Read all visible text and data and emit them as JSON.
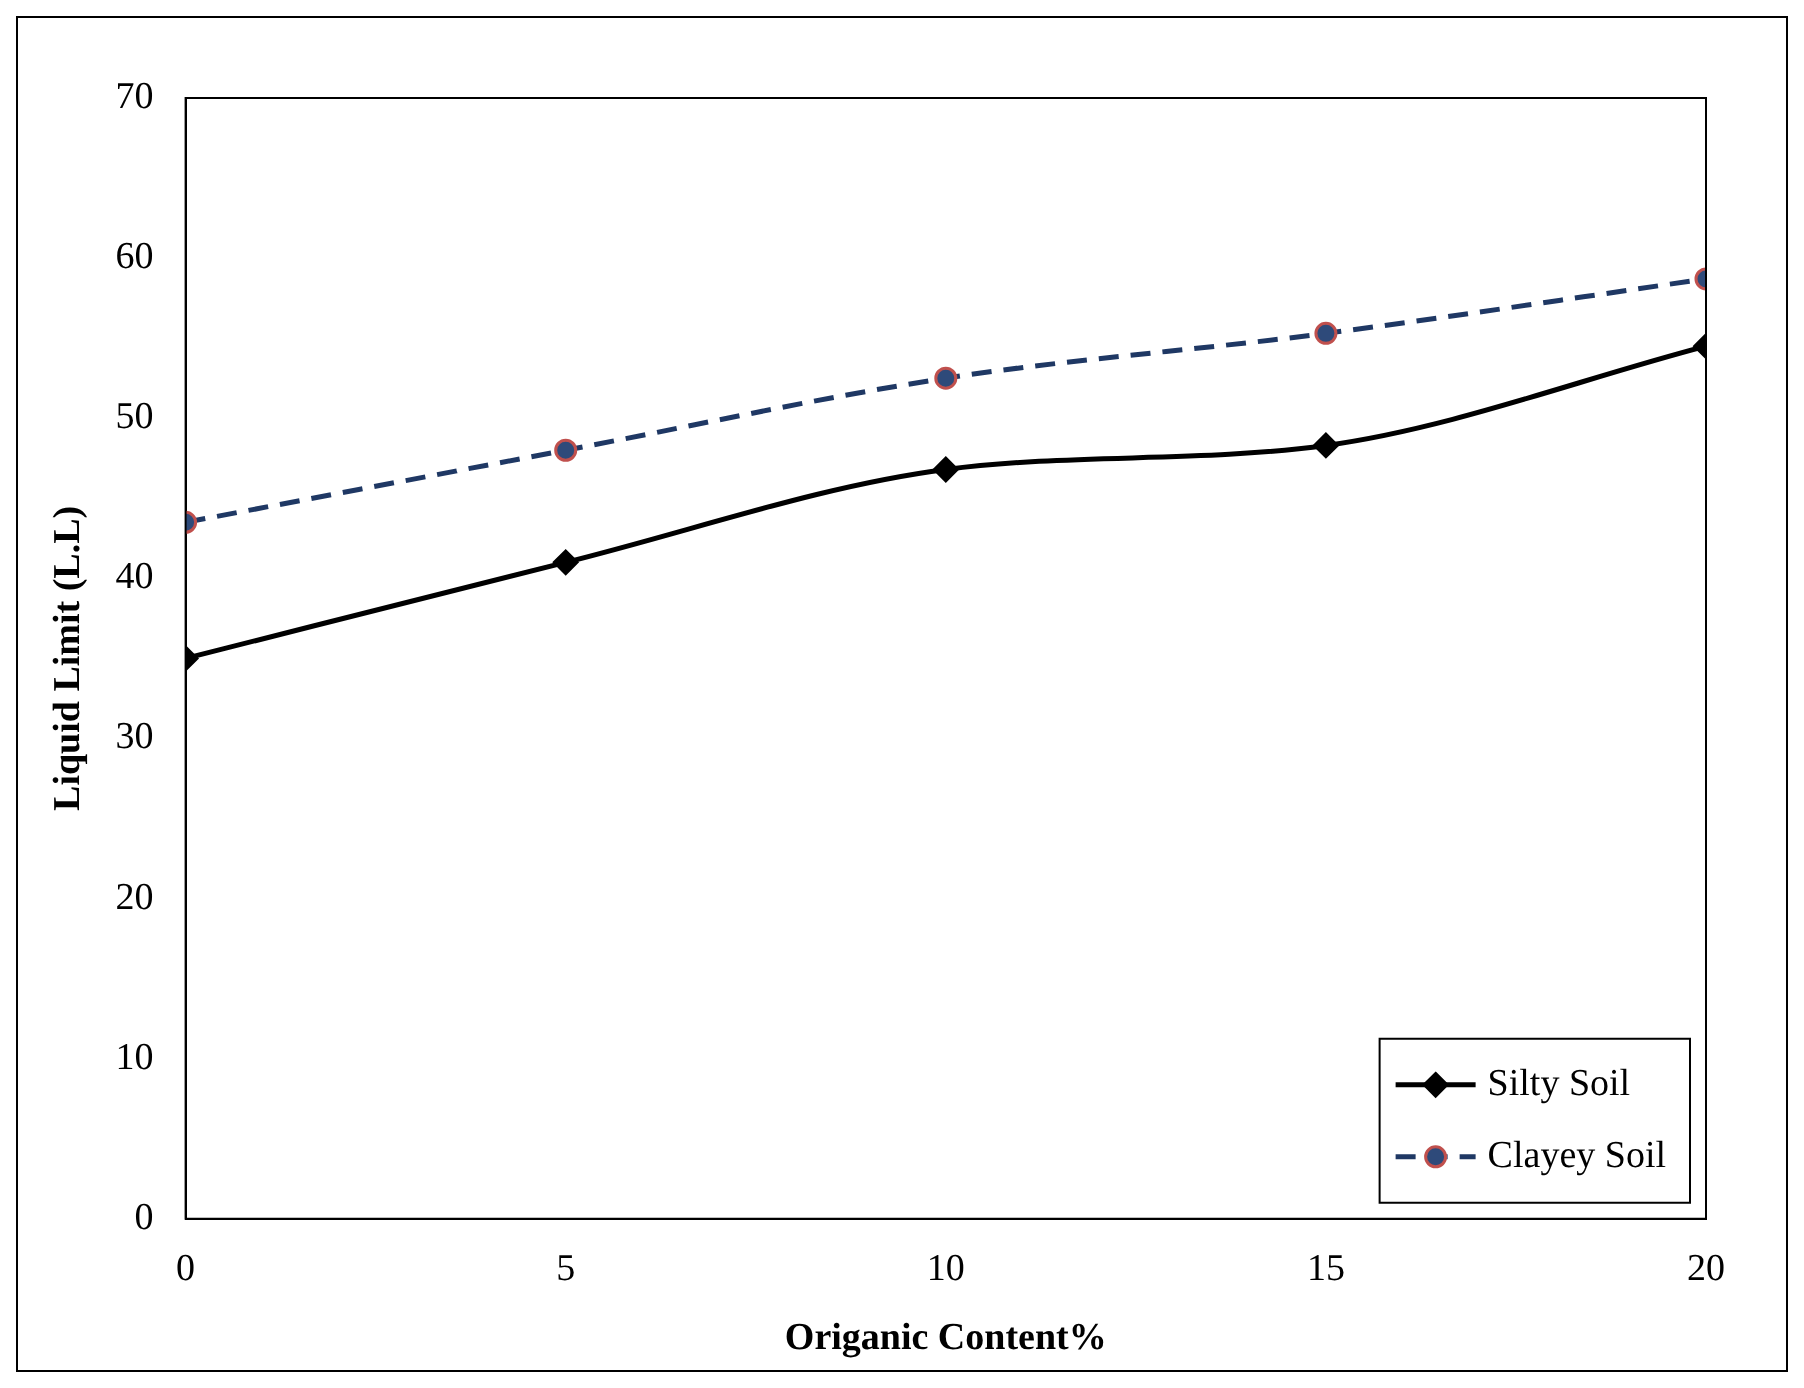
{
  "chart_data": {
    "type": "line",
    "xlabel": "Origanic Content%",
    "ylabel": "Liquid Limit (L.L)",
    "x": [
      0,
      5,
      10,
      15,
      20
    ],
    "xlim": [
      0,
      20
    ],
    "xticks": [
      0,
      5,
      10,
      15,
      20
    ],
    "ylim": [
      0,
      70
    ],
    "yticks": [
      0,
      10,
      20,
      30,
      40,
      50,
      60,
      70
    ],
    "grid": false,
    "legend": "bottom right",
    "series": [
      {
        "name": "Silty Soil",
        "color": "#000000",
        "values": [
          35,
          41,
          46.8,
          48.3,
          54.5
        ],
        "marker": "diamond",
        "line_style": "solid"
      },
      {
        "name": "Clayey Soil",
        "color": "#1f3864",
        "values": [
          43.5,
          48,
          52.5,
          55.3,
          58.7
        ],
        "marker": "circle",
        "line_style": "dashed"
      }
    ]
  }
}
